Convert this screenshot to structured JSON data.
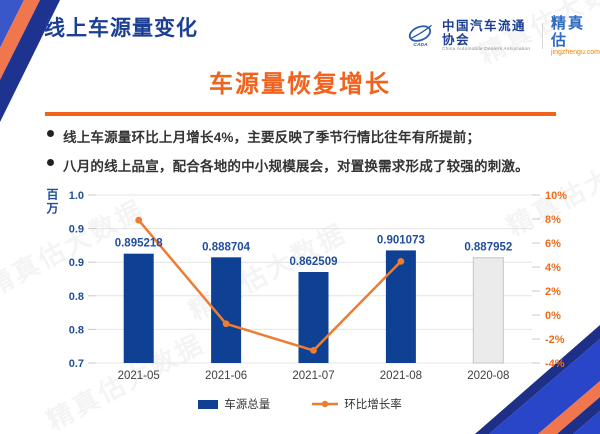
{
  "header": {
    "title": "线上车源量变化",
    "logo": {
      "org_cn": "中国汽车流通协会",
      "org_en": "China Automobile Dealers Association",
      "org_mark": "CADA",
      "brand": "精真估",
      "brand_url": "jingzhengu.com"
    }
  },
  "slide": {
    "title": "车源量恢复增长",
    "bullets": [
      "线上车源量环比上月增长4%，主要反映了季节行情比往年有所提前；",
      "八月的线上品宣，配合各地的中小规模展会，对置换需求形成了较强的刺激。"
    ]
  },
  "watermark": "精真估大数据",
  "theme": {
    "accent_orange": "#f1621c",
    "header_blue": "#1c3f94"
  },
  "chart_data": {
    "type": "bar",
    "categories": [
      "2021-05",
      "2021-06",
      "2021-07",
      "2021-08",
      "2020-08"
    ],
    "series": [
      {
        "name": "车源总量",
        "type": "bar",
        "axis": "left",
        "values": [
          0.895218,
          0.888704,
          0.862509,
          0.901073,
          0.887952
        ],
        "labels": [
          "0.895218",
          "0.888704",
          "0.862509",
          "0.901073",
          "0.887952"
        ],
        "colors": [
          "#0e4194",
          "#0e4194",
          "#0e4194",
          "#0e4194",
          "#ebebeb"
        ],
        "borders": [
          "none",
          "none",
          "none",
          "none",
          "#c4c4c4"
        ]
      },
      {
        "name": "环比增长率",
        "type": "line",
        "axis": "right",
        "values": [
          7.9,
          -0.73,
          -2.95,
          4.47
        ]
      }
    ],
    "left_axis": {
      "title": "百万",
      "min": 0.7,
      "max": 1.0,
      "tick_labels": [
        "1.0",
        "0.9",
        "0.9",
        "0.8",
        "0.8",
        "0.7"
      ]
    },
    "right_axis": {
      "min": -4,
      "max": 10,
      "tick_labels": [
        "10%",
        "8%",
        "6%",
        "4%",
        "2%",
        "0%",
        "-2%",
        "-4%"
      ]
    },
    "legend_position": "bottom",
    "grid": true,
    "colors": {
      "bar": "#0e4194",
      "line": "#ed7d31",
      "data_label": "#1f4e9c",
      "grid_line": "#e4e4e4",
      "tick_dash": "#c9c9c9",
      "axis_text_left": "#1f4e9c",
      "axis_text_right": "#ed6c1e",
      "category_text": "#3f3f3f"
    }
  }
}
